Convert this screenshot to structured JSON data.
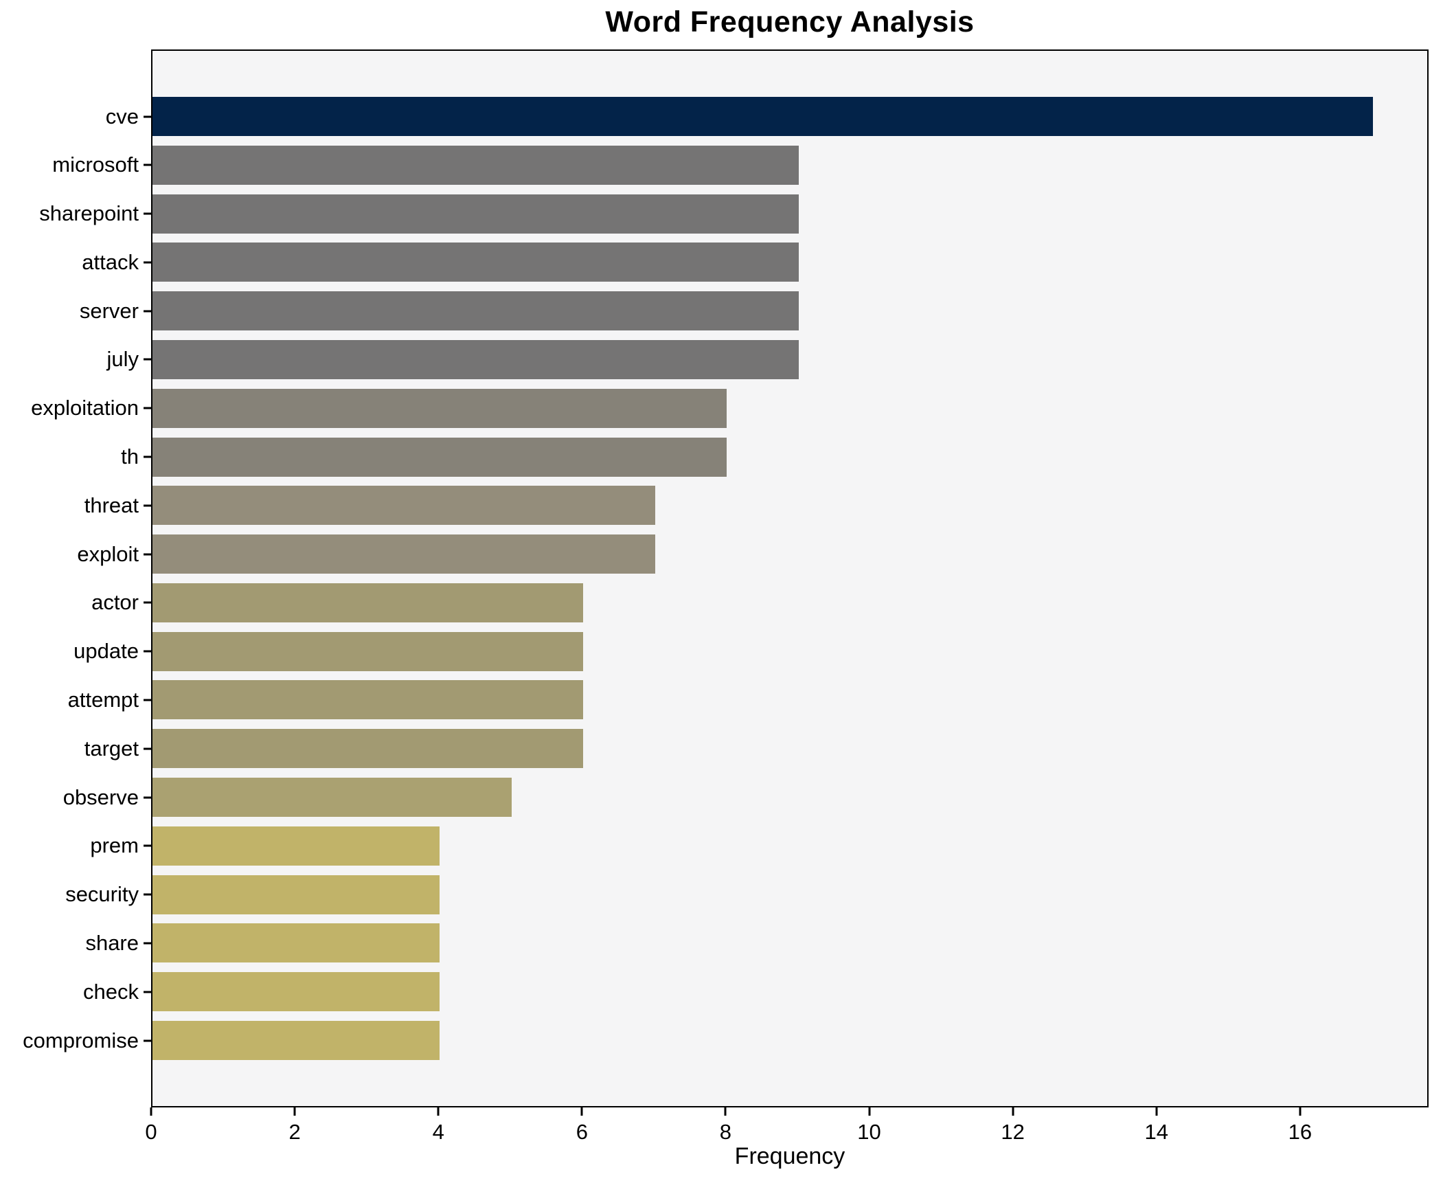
{
  "chart_data": {
    "type": "bar",
    "orientation": "horizontal",
    "title": "Word Frequency Analysis",
    "xlabel": "Frequency",
    "ylabel": "",
    "categories": [
      "cve",
      "microsoft",
      "sharepoint",
      "attack",
      "server",
      "july",
      "exploitation",
      "th",
      "threat",
      "exploit",
      "actor",
      "update",
      "attempt",
      "target",
      "observe",
      "prem",
      "security",
      "share",
      "check",
      "compromise"
    ],
    "values": [
      17,
      9,
      9,
      9,
      9,
      9,
      8,
      8,
      7,
      7,
      6,
      6,
      6,
      6,
      5,
      4,
      4,
      4,
      4,
      4
    ],
    "bar_colors": [
      "#032349",
      "#757474",
      "#757474",
      "#757474",
      "#757474",
      "#757474",
      "#868278",
      "#868278",
      "#948d7b",
      "#948d7b",
      "#a29a72",
      "#a29a72",
      "#a29a72",
      "#a29a72",
      "#aaa171",
      "#c1b369",
      "#c1b369",
      "#c1b369",
      "#c1b369",
      "#c1b369"
    ],
    "xticks": [
      0,
      2,
      4,
      6,
      8,
      10,
      12,
      14,
      16
    ],
    "xlim": [
      0,
      17.79
    ],
    "grid": false,
    "legend_position": "none",
    "plot_background": "#f5f5f6",
    "figure_background": "#ffffff",
    "axis_color": "#000000"
  }
}
